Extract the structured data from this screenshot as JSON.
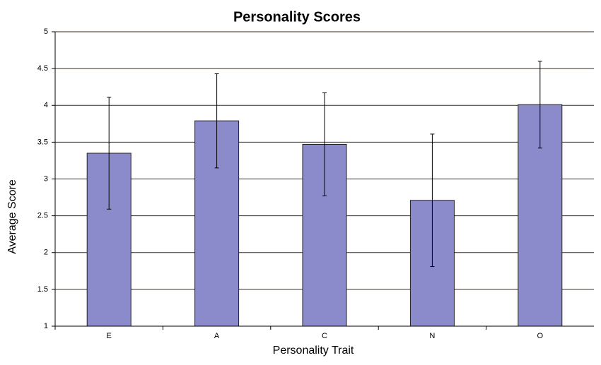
{
  "chart_data": {
    "type": "bar",
    "title": "Personality Scores",
    "x_label": "Personality Trait",
    "y_label": "Average Score",
    "categories": [
      "E",
      "A",
      "C",
      "N",
      "O"
    ],
    "values": [
      3.35,
      3.79,
      3.47,
      2.71,
      4.01
    ],
    "errors": [
      0.76,
      0.64,
      0.7,
      0.9,
      0.59
    ],
    "color": "#8b8bcc",
    "ylim": [
      1,
      5
    ],
    "yticks": [
      1,
      1.5,
      2,
      2.5,
      3,
      3.5,
      4,
      4.5,
      5
    ],
    "grid": true
  }
}
